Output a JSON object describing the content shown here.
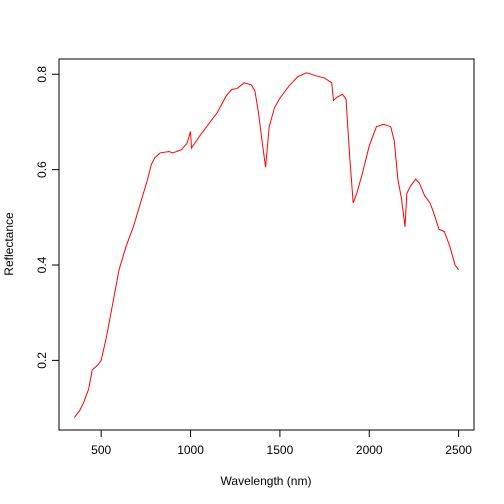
{
  "chart_data": {
    "type": "line",
    "x_label": "Wavelength (nm)",
    "y_label": "Reflectance",
    "x": [
      350,
      380,
      400,
      430,
      450,
      480,
      500,
      530,
      560,
      600,
      640,
      680,
      720,
      760,
      780,
      800,
      830,
      880,
      900,
      950,
      980,
      1000,
      1005,
      1050,
      1100,
      1150,
      1200,
      1230,
      1260,
      1300,
      1340,
      1360,
      1380,
      1400,
      1420,
      1440,
      1470,
      1500,
      1550,
      1600,
      1650,
      1700,
      1750,
      1790,
      1800,
      1820,
      1850,
      1870,
      1890,
      1910,
      1930,
      1960,
      2000,
      2040,
      2080,
      2120,
      2140,
      2160,
      2180,
      2200,
      2210,
      2230,
      2260,
      2280,
      2310,
      2340,
      2360,
      2390,
      2420,
      2450,
      2480,
      2500
    ],
    "values": [
      0.08,
      0.095,
      0.11,
      0.14,
      0.18,
      0.19,
      0.2,
      0.25,
      0.31,
      0.39,
      0.44,
      0.48,
      0.53,
      0.58,
      0.61,
      0.625,
      0.635,
      0.638,
      0.635,
      0.642,
      0.655,
      0.68,
      0.645,
      0.67,
      0.695,
      0.72,
      0.755,
      0.768,
      0.77,
      0.782,
      0.778,
      0.765,
      0.72,
      0.66,
      0.605,
      0.69,
      0.73,
      0.75,
      0.775,
      0.795,
      0.803,
      0.797,
      0.792,
      0.782,
      0.745,
      0.752,
      0.758,
      0.748,
      0.63,
      0.53,
      0.55,
      0.59,
      0.65,
      0.69,
      0.695,
      0.69,
      0.66,
      0.58,
      0.54,
      0.48,
      0.55,
      0.565,
      0.58,
      0.572,
      0.545,
      0.53,
      0.51,
      0.475,
      0.47,
      0.44,
      0.4,
      0.39
    ],
    "color": "#ff0000",
    "xlim": [
      264,
      2586
    ],
    "xticks": [
      500,
      1000,
      1500,
      2000,
      2500
    ],
    "ylim": [
      0.054,
      0.832
    ],
    "yticks": [
      0.2,
      0.4,
      0.6,
      0.8
    ]
  }
}
